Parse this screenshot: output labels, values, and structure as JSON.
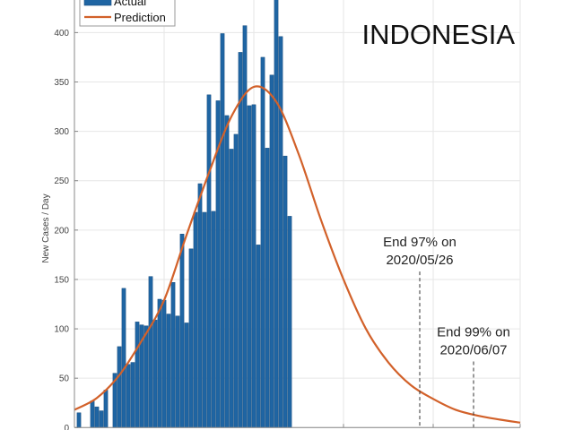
{
  "chart_data": {
    "type": "bar",
    "title": "INDONESIA",
    "xlabel": "",
    "ylabel": "New Cases / Day",
    "ylim": [
      0,
      433
    ],
    "xlim": [
      -1,
      98.4
    ],
    "x_unit": "day index",
    "yticks": [
      0,
      50,
      100,
      150,
      200,
      250,
      300,
      350,
      400
    ],
    "x_gridlines": [
      19,
      39,
      59,
      79
    ],
    "grid": true,
    "legend": {
      "placement": "top-left",
      "entries": [
        "Actual",
        "Prediction"
      ]
    },
    "colors": {
      "actual": "#1f65a3",
      "prediction": "#d2612a"
    },
    "series": [
      {
        "name": "Actual",
        "type": "bar",
        "x": [
          0,
          1,
          2,
          3,
          4,
          5,
          6,
          7,
          8,
          9,
          10,
          11,
          12,
          13,
          14,
          15,
          16,
          17,
          18,
          19,
          20,
          21,
          22,
          23,
          24,
          25,
          26,
          27,
          28,
          29,
          30,
          31,
          32,
          33,
          34,
          35,
          36,
          37,
          38,
          39,
          40,
          41,
          42,
          43,
          44,
          45,
          46,
          47
        ],
        "values": [
          15,
          0,
          0,
          27,
          21,
          17,
          38,
          0,
          55,
          82,
          141,
          64,
          66,
          107,
          104,
          103,
          153,
          109,
          130,
          129,
          115,
          147,
          113,
          196,
          106,
          181,
          218,
          247,
          218,
          337,
          219,
          331,
          399,
          316,
          282,
          297,
          380,
          407,
          326,
          327,
          185,
          375,
          283,
          357,
          436,
          396,
          275,
          214
        ]
      },
      {
        "name": "Prediction",
        "type": "line",
        "x": [
          -1,
          4,
          9,
          14,
          19,
          24,
          29,
          34,
          39,
          44,
          49,
          54,
          59,
          64,
          69,
          74,
          79,
          84,
          89,
          94,
          98.4
        ],
        "values": [
          18,
          30,
          53,
          88,
          129,
          195,
          258,
          315,
          345,
          330,
          277,
          210,
          150,
          100,
          66,
          43,
          29,
          18,
          12,
          8,
          5
        ]
      }
    ],
    "annotations": [
      {
        "x": 76,
        "line1": "End 97% on",
        "line2": "2020/05/26",
        "line_top_value": 158
      },
      {
        "x": 88,
        "line1": "End 99% on",
        "line2": "2020/06/07",
        "line_top_value": 67
      }
    ]
  }
}
